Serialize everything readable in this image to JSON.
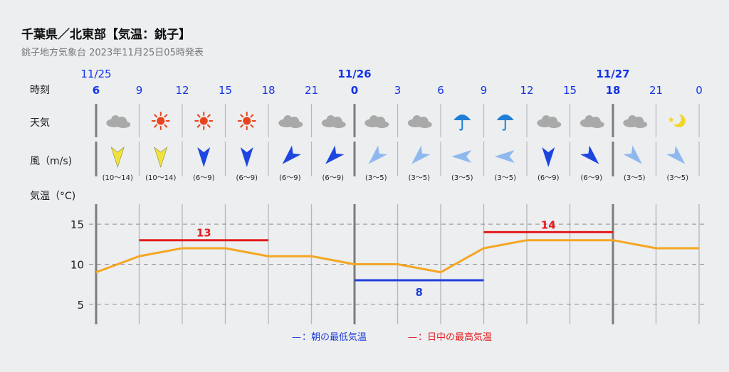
{
  "header": {
    "title": "千葉県／北東部【気温：銚子】",
    "subtitle": "銚子地方気象台 2023年11月25日05時発表"
  },
  "row_labels": {
    "time": "時刻",
    "weather": "天気",
    "wind": "風（m/s)",
    "temperature": "気温（°C)"
  },
  "timeline": {
    "dates": [
      {
        "label": "11/25",
        "col": 0
      },
      {
        "label": "11/26",
        "col": 6
      },
      {
        "label": "11/27",
        "col": 12
      }
    ],
    "hours": [
      "6",
      "9",
      "12",
      "15",
      "18",
      "21",
      "0",
      "3",
      "6",
      "9",
      "12",
      "15",
      "18",
      "21",
      "0"
    ]
  },
  "weather": [
    "cloudy-icon",
    "sunny-icon",
    "sunny-icon",
    "sunny-icon",
    "cloudy-icon",
    "cloudy-icon",
    "cloudy-icon",
    "cloudy-icon",
    "rain-icon",
    "rain-icon",
    "cloudy-icon",
    "cloudy-icon",
    "cloudy-icon",
    "clear-night-icon"
  ],
  "wind": [
    {
      "speed": "(10～14)",
      "dir": 0,
      "level": "strong"
    },
    {
      "speed": "(10～14)",
      "dir": 0,
      "level": "strong"
    },
    {
      "speed": "(6～9)",
      "dir": 0,
      "level": "medium"
    },
    {
      "speed": "(6～9)",
      "dir": 0,
      "level": "medium"
    },
    {
      "speed": "(6～9)",
      "dir": 45,
      "level": "medium"
    },
    {
      "speed": "(6～9)",
      "dir": 45,
      "level": "medium"
    },
    {
      "speed": "(3～5)",
      "dir": 45,
      "level": "weak"
    },
    {
      "speed": "(3～5)",
      "dir": 45,
      "level": "weak"
    },
    {
      "speed": "(3～5)",
      "dir": 90,
      "level": "weak"
    },
    {
      "speed": "(3～5)",
      "dir": 90,
      "level": "weak"
    },
    {
      "speed": "(6～9)",
      "dir": 0,
      "level": "medium"
    },
    {
      "speed": "(6～9)",
      "dir": -45,
      "level": "medium"
    },
    {
      "speed": "(3～5)",
      "dir": -45,
      "level": "weak"
    },
    {
      "speed": "(3～5)",
      "dir": -45,
      "level": "weak"
    }
  ],
  "colors": {
    "date": "#1433e6",
    "temp_line": "#f5a623",
    "max_temp": "#e41a1c",
    "min_temp": "#1f3fd6",
    "wind_strong": "#f2e33a",
    "wind_medium": "#1d45e0",
    "wind_weak": "#8fb8ef",
    "sun": "#e8431c",
    "rain": "#1f7fd6",
    "moon": "#f2d726",
    "cloud": "#a9a9a9"
  },
  "chart_data": {
    "type": "line",
    "x": [
      "11/25 6",
      "11/25 9",
      "11/25 12",
      "11/25 15",
      "11/25 18",
      "11/25 21",
      "11/26 0",
      "11/26 3",
      "11/26 6",
      "11/26 9",
      "11/26 12",
      "11/26 15",
      "11/26 18",
      "11/26 21",
      "11/27 0"
    ],
    "series": [
      {
        "values": [
          9,
          11,
          12,
          12,
          11,
          11,
          10,
          10,
          9,
          12,
          13,
          13,
          13,
          12,
          12
        ]
      }
    ],
    "max_temps": [
      {
        "value": 13,
        "label": "13",
        "from": 1,
        "to": 4
      },
      {
        "value": 14,
        "label": "14",
        "from": 9,
        "to": 12
      }
    ],
    "min_temps": [
      {
        "value": 8,
        "label": "8",
        "from": 6,
        "to": 9
      }
    ],
    "yticks": [
      "5",
      "10",
      "15"
    ],
    "ylim": [
      2.5,
      17.5
    ],
    "grid": true,
    "legend": [
      {
        "symbol": "—",
        "text": "：朝の最低気温",
        "color": "min_temp"
      },
      {
        "symbol": "—",
        "text": "：日中の最高気温",
        "color": "max_temp"
      }
    ],
    "legend_position": "bottom"
  }
}
